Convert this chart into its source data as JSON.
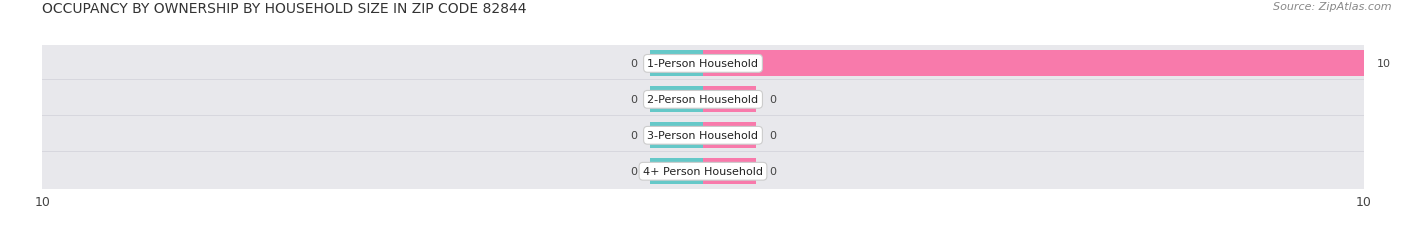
{
  "title": "OCCUPANCY BY OWNERSHIP BY HOUSEHOLD SIZE IN ZIP CODE 82844",
  "source": "Source: ZipAtlas.com",
  "categories": [
    "1-Person Household",
    "2-Person Household",
    "3-Person Household",
    "4+ Person Household"
  ],
  "owner_values": [
    0,
    0,
    0,
    0
  ],
  "renter_values": [
    10,
    0,
    0,
    0
  ],
  "owner_color": "#65c8c8",
  "renter_color": "#f87aab",
  "row_bg_color": "#e8e8ec",
  "xlim_left": -10,
  "xlim_right": 10,
  "tick_labels_left": "10",
  "tick_labels_right": "10",
  "title_fontsize": 10,
  "source_fontsize": 8,
  "fig_bg_color": "#ffffff",
  "stub_size": 0.8
}
